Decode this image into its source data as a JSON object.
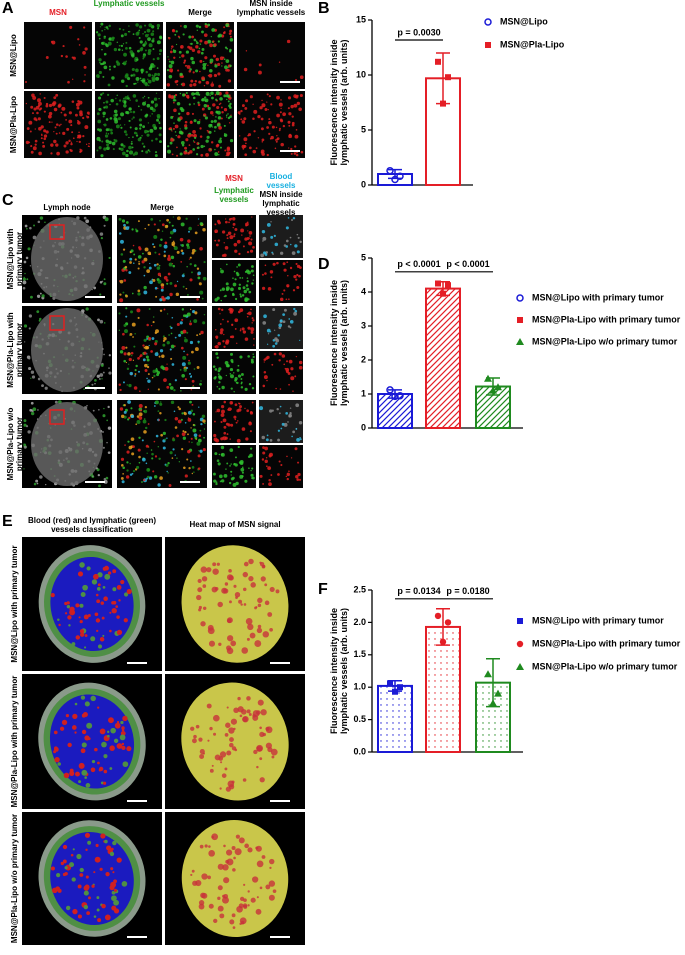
{
  "panel_labels": [
    "A",
    "B",
    "C",
    "D",
    "E",
    "F"
  ],
  "panel_a": {
    "column_labels": [
      "MSN",
      "Lymphatic vessels",
      "Merge",
      "MSN inside lymphatic vessels"
    ],
    "row_labels": [
      "MSN@Lipo",
      "MSN@Pla-Lipo"
    ]
  },
  "panel_c": {
    "column_labels": [
      "Lymph node",
      "Merge"
    ],
    "channel_labels": [
      "MSN",
      "Lymphatic vessels",
      "Blood vessels",
      "MSN inside lymphatic vessels"
    ],
    "row_labels": [
      "MSN@Lipo with primary tumor",
      "MSN@Pla-Lipo with primary tumor",
      "MSN@Pla-Lipo w/o primary tumor"
    ]
  },
  "panel_e": {
    "column_labels": [
      "Blood (red) and lymphatic (green) vessels classification",
      "Heat map of MSN signal"
    ],
    "row_labels": [
      "MSN@Lipo with primary tumor",
      "MSN@Pla-Lipo with primary tumor",
      "MSN@Pla-Lipo w/o primary tumor"
    ]
  },
  "chart_data": [
    {
      "type": "bar",
      "ylabel": "Fluorescence intensity inside lymphatic vessels (arb. units)",
      "ylim": [
        0,
        15
      ],
      "yticks": [
        0,
        5,
        10,
        15
      ],
      "fill_pattern": "none",
      "legend": "right",
      "annotations": [
        "p = 0.0030"
      ],
      "series": [
        {
          "name": "MSN@Lipo",
          "color": "#1a1ad6",
          "marker": "circle-open",
          "value": 1.0,
          "error": 0.4,
          "points": [
            1.3,
            0.8,
            0.5
          ]
        },
        {
          "name": "MSN@Pla-Lipo",
          "color": "#e41e26",
          "marker": "square",
          "value": 9.7,
          "error": 2.3,
          "points": [
            11.2,
            9.8,
            7.4
          ]
        }
      ]
    },
    {
      "type": "bar",
      "ylabel": "Fluorescence intensity inside lymphatic vessels (arb. units)",
      "ylim": [
        0,
        5
      ],
      "yticks": [
        0,
        1,
        2,
        3,
        4,
        5
      ],
      "fill_pattern": "hatch",
      "legend": "right",
      "annotations": [
        "p < 0.0001",
        "p < 0.0001"
      ],
      "series": [
        {
          "name": "MSN@Lipo with primary tumor",
          "color": "#1a1ad6",
          "marker": "circle-open",
          "value": 1.0,
          "error": 0.12,
          "points": [
            1.12,
            0.95,
            0.93
          ]
        },
        {
          "name": "MSN@Pla-Lipo with primary tumor",
          "color": "#e41e26",
          "marker": "square",
          "value": 4.1,
          "error": 0.2,
          "points": [
            4.25,
            4.2,
            3.95
          ]
        },
        {
          "name": "MSN@Pla-Lipo w/o primary tumor",
          "color": "#1f8a1f",
          "marker": "triangle",
          "value": 1.22,
          "error": 0.25,
          "points": [
            1.45,
            1.2,
            1.1
          ]
        }
      ]
    },
    {
      "type": "bar",
      "ylabel": "Fluorescence intensity inside lymphatic vessels (arb. units)",
      "ylim": [
        0,
        2.5
      ],
      "yticks": [
        {
          "value": 0,
          "label": "0.0"
        },
        0.5,
        {
          "value": 1,
          "label": "1.0"
        },
        1.5,
        {
          "value": 2,
          "label": "2.0"
        },
        2.5
      ],
      "fill_pattern": "dots",
      "legend": "right",
      "annotations": [
        "p = 0.0134",
        "p = 0.0180"
      ],
      "series": [
        {
          "name": "MSN@Lipo with primary tumor",
          "color": "#1a1ad6",
          "marker": "square",
          "value": 1.02,
          "error": 0.08,
          "points": [
            1.06,
            1.0,
            0.93
          ]
        },
        {
          "name": "MSN@Pla-Lipo with primary tumor",
          "color": "#e41e26",
          "marker": "circle",
          "value": 1.93,
          "error": 0.28,
          "points": [
            2.1,
            2.0,
            1.7
          ]
        },
        {
          "name": "MSN@Pla-Lipo w/o primary tumor",
          "color": "#1f8a1f",
          "marker": "triangle",
          "value": 1.07,
          "error": 0.37,
          "points": [
            1.2,
            0.9,
            0.75
          ]
        }
      ]
    }
  ]
}
